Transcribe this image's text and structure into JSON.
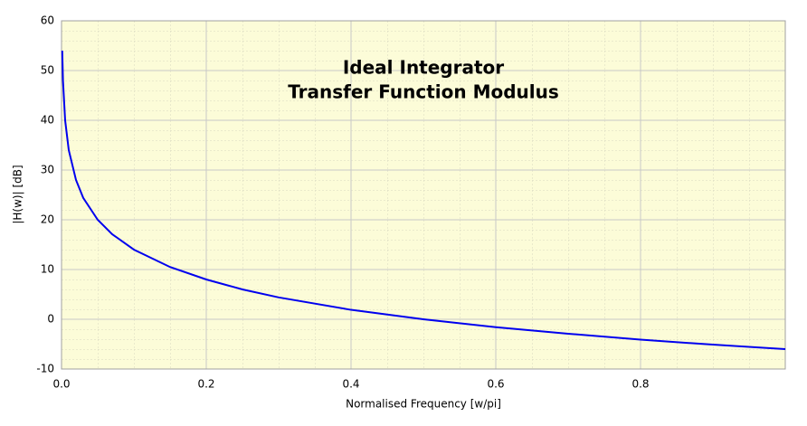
{
  "chart_data": {
    "type": "line",
    "title_lines": [
      "Ideal Integrator",
      "Transfer Function Modulus"
    ],
    "xlabel": "Normalised Frequency [w/pi]",
    "ylabel": "|H(w)| [dB]",
    "x": [
      0.001,
      0.002,
      0.005,
      0.01,
      0.02,
      0.03,
      0.05,
      0.07,
      0.1,
      0.15,
      0.2,
      0.25,
      0.3,
      0.4,
      0.5,
      0.6,
      0.7,
      0.8,
      0.9,
      1.0
    ],
    "series": [
      {
        "name": "|H(w)|",
        "color": "#0000ee",
        "values": [
          54,
          48,
          40,
          34,
          28,
          24.4,
          20,
          17.1,
          14,
          10.5,
          8,
          6,
          4.4,
          1.9,
          0,
          -1.6,
          -2.9,
          -4.1,
          -5.1,
          -6
        ]
      }
    ],
    "xlim": [
      0,
      1
    ],
    "xticks": [
      {
        "value": 0,
        "label": "0.0"
      },
      0.2,
      0.4,
      0.6,
      0.8
    ],
    "ylim": [
      -10,
      60
    ],
    "yticks": [
      -10,
      0,
      10,
      20,
      30,
      40,
      50,
      60
    ],
    "grid": true,
    "background": "#fcfcd8"
  }
}
